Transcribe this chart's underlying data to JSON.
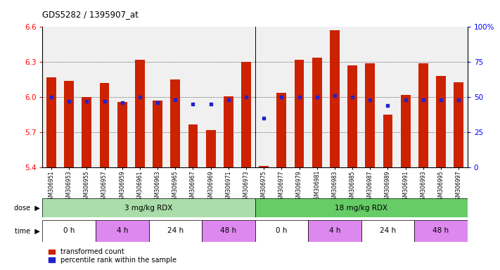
{
  "title": "GDS5282 / 1395907_at",
  "samples": [
    "GSM306951",
    "GSM306953",
    "GSM306955",
    "GSM306957",
    "GSM306959",
    "GSM306961",
    "GSM306963",
    "GSM306965",
    "GSM306967",
    "GSM306969",
    "GSM306971",
    "GSM306973",
    "GSM306975",
    "GSM306977",
    "GSM306979",
    "GSM306981",
    "GSM306983",
    "GSM306985",
    "GSM306987",
    "GSM306989",
    "GSM306991",
    "GSM306993",
    "GSM306995",
    "GSM306997"
  ],
  "bar_values": [
    6.17,
    6.14,
    6.0,
    6.12,
    5.96,
    6.32,
    5.97,
    6.15,
    5.77,
    5.72,
    6.01,
    6.3,
    5.41,
    6.04,
    6.32,
    6.34,
    6.57,
    6.27,
    6.29,
    5.85,
    6.02,
    6.29,
    6.18,
    6.13
  ],
  "blue_dot_percentile": [
    50,
    47,
    47,
    47,
    46,
    50,
    46,
    48,
    45,
    45,
    48,
    50,
    35,
    50,
    50,
    50,
    51,
    50,
    48,
    44,
    48,
    48,
    48,
    48
  ],
  "y_min": 5.4,
  "y_max": 6.6,
  "y_ticks": [
    5.4,
    5.7,
    6.0,
    6.3,
    6.6
  ],
  "right_y_ticks": [
    0,
    25,
    50,
    75,
    100
  ],
  "right_y_labels": [
    "0",
    "25",
    "50",
    "75",
    "100%"
  ],
  "bar_color": "#cc2200",
  "dot_color": "#2222cc",
  "dose_groups": [
    {
      "label": "3 mg/kg RDX",
      "start": 0,
      "end": 12,
      "color": "#aaddaa"
    },
    {
      "label": "18 mg/kg RDX",
      "start": 12,
      "end": 24,
      "color": "#66cc66"
    }
  ],
  "time_groups": [
    {
      "label": "0 h",
      "start": 0,
      "end": 3,
      "color": "#ffffff"
    },
    {
      "label": "4 h",
      "start": 3,
      "end": 6,
      "color": "#dd88dd"
    },
    {
      "label": "24 h",
      "start": 6,
      "end": 9,
      "color": "#ffffff"
    },
    {
      "label": "48 h",
      "start": 9,
      "end": 12,
      "color": "#dd88dd"
    },
    {
      "label": "0 h",
      "start": 12,
      "end": 15,
      "color": "#ffffff"
    },
    {
      "label": "4 h",
      "start": 15,
      "end": 18,
      "color": "#dd88dd"
    },
    {
      "label": "24 h",
      "start": 18,
      "end": 21,
      "color": "#ffffff"
    },
    {
      "label": "48 h",
      "start": 21,
      "end": 24,
      "color": "#dd88dd"
    }
  ],
  "legend_items": [
    {
      "label": "transformed count",
      "color": "#cc2200"
    },
    {
      "label": "percentile rank within the sample",
      "color": "#2222cc"
    }
  ]
}
